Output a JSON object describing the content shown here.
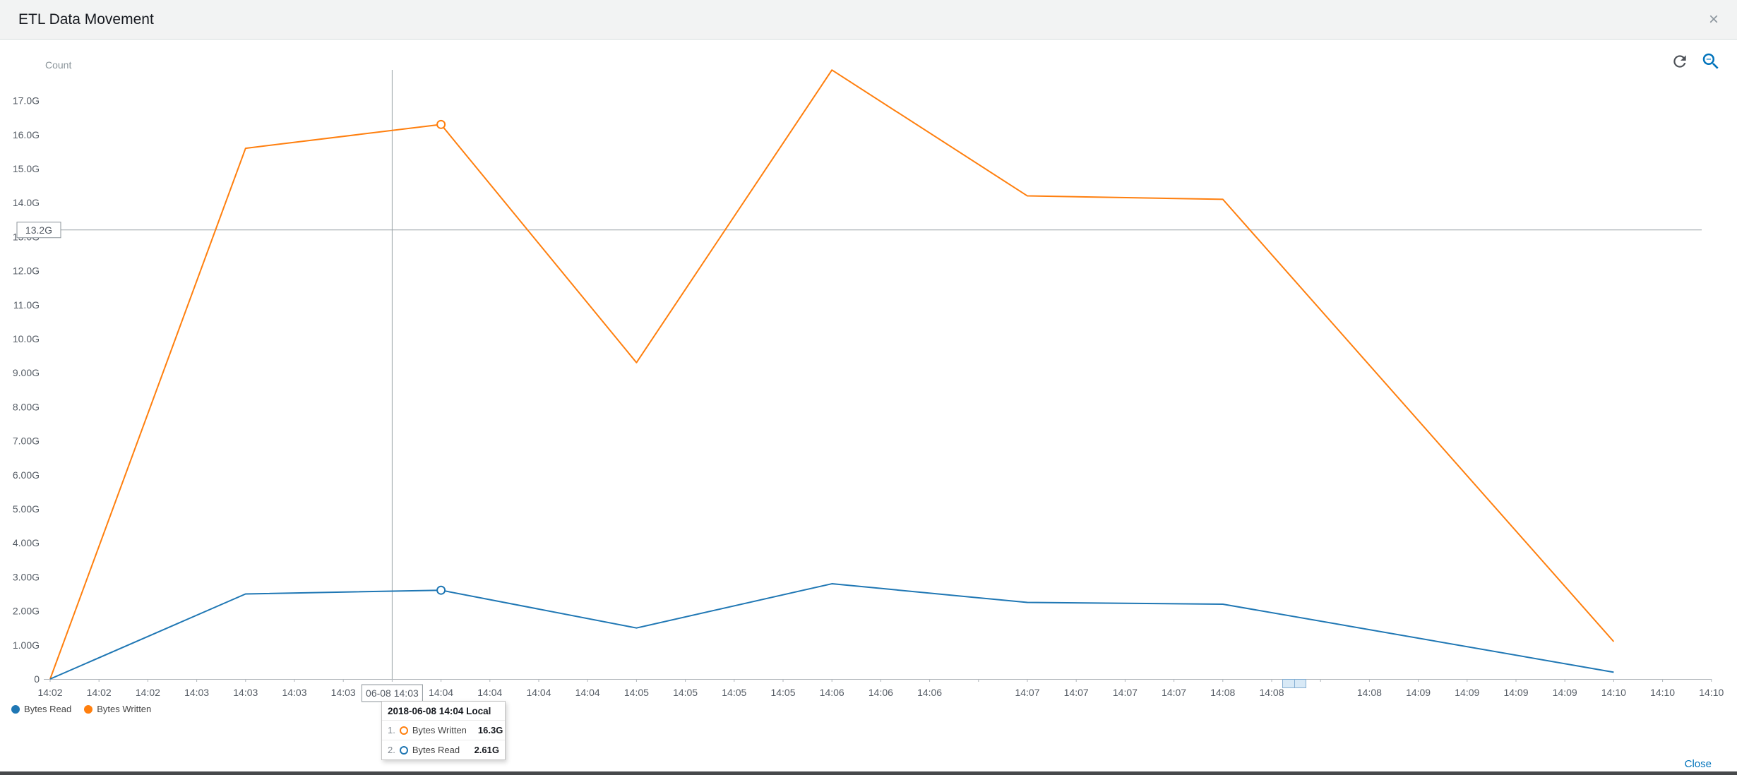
{
  "header": {
    "title": "ETL Data Movement",
    "close_icon": "×"
  },
  "toolbar": {
    "refresh_icon": "refresh-icon",
    "zoom_icon": "zoom-out-magnifier-icon"
  },
  "colors": {
    "accent_blue": "#0073bb",
    "series_blue": "#1f77b4",
    "series_orange": "#ff7f0e",
    "tracker_gray": "#9aa2a8"
  },
  "legend": [
    {
      "label": "Bytes Read",
      "color": "#1f77b4"
    },
    {
      "label": "Bytes Written",
      "color": "#ff7f0e"
    }
  ],
  "tooltip": {
    "title": "2018-06-08 14:04 Local",
    "rows": [
      {
        "index": "1.",
        "label": "Bytes Written",
        "value": "16.3G",
        "color": "#ff7f0e"
      },
      {
        "index": "2.",
        "label": "Bytes Read",
        "value": "2.61G",
        "color": "#1f77b4"
      }
    ]
  },
  "footer": {
    "close_label": "Close"
  },
  "chart_data": {
    "type": "line",
    "title": "ETL Data Movement",
    "ylabel": "Count",
    "unit": "G",
    "grid": false,
    "legend_position": "bottom-left",
    "ylim": [
      0,
      18
    ],
    "x": [
      "14:02",
      "14:03",
      "14:04",
      "14:05",
      "14:06",
      "14:07",
      "14:08",
      "14:10"
    ],
    "minute_slots": [
      0,
      4,
      8,
      12,
      16,
      20,
      24,
      32
    ],
    "series": [
      {
        "name": "Bytes Written",
        "color": "#ff7f0e",
        "values": [
          0,
          15.6,
          16.3,
          9.3,
          17.9,
          14.2,
          14.1,
          1.1
        ]
      },
      {
        "name": "Bytes Read",
        "color": "#1f77b4",
        "values": [
          0,
          2.5,
          2.61,
          1.5,
          2.8,
          2.25,
          2.2,
          0.2
        ]
      }
    ],
    "y_ticks": [
      {
        "label": "17.0G",
        "value": 17
      },
      {
        "label": "16.0G",
        "value": 16
      },
      {
        "label": "15.0G",
        "value": 15
      },
      {
        "label": "14.0G",
        "value": 14
      },
      {
        "label": "13.0G",
        "value": 13
      },
      {
        "label": "12.0G",
        "value": 12
      },
      {
        "label": "11.0G",
        "value": 11
      },
      {
        "label": "10.0G",
        "value": 10
      },
      {
        "label": "9.00G",
        "value": 9
      },
      {
        "label": "8.00G",
        "value": 8
      },
      {
        "label": "7.00G",
        "value": 7
      },
      {
        "label": "6.00G",
        "value": 6
      },
      {
        "label": "5.00G",
        "value": 5
      },
      {
        "label": "4.00G",
        "value": 4
      },
      {
        "label": "3.00G",
        "value": 3
      },
      {
        "label": "2.00G",
        "value": 2
      },
      {
        "label": "1.00G",
        "value": 1
      },
      {
        "label": "0",
        "value": 0
      }
    ],
    "x_slot_labels": [
      "14:02",
      "14:02",
      "14:02",
      "14:03",
      "14:03",
      "14:03",
      "14:03",
      "",
      "14:04",
      "14:04",
      "14:04",
      "14:04",
      "14:05",
      "14:05",
      "14:05",
      "14:05",
      "14:06",
      "14:06",
      "14:06",
      "",
      "14:07",
      "14:07",
      "14:07",
      "14:07",
      "14:08",
      "14:08",
      "",
      "14:08",
      "14:09",
      "14:09",
      "14:09",
      "14:09",
      "14:10",
      "14:10",
      "14:10"
    ],
    "tracker": {
      "slot": 7,
      "x_label": "06-08 14:03",
      "y_value": 13.2,
      "y_label": "13.2G"
    },
    "hover_markers": [
      {
        "series_color": "#ff7f0e",
        "slot": 8,
        "value": 16.3
      },
      {
        "series_color": "#1f77b4",
        "slot": 8,
        "value": 2.61
      }
    ]
  }
}
